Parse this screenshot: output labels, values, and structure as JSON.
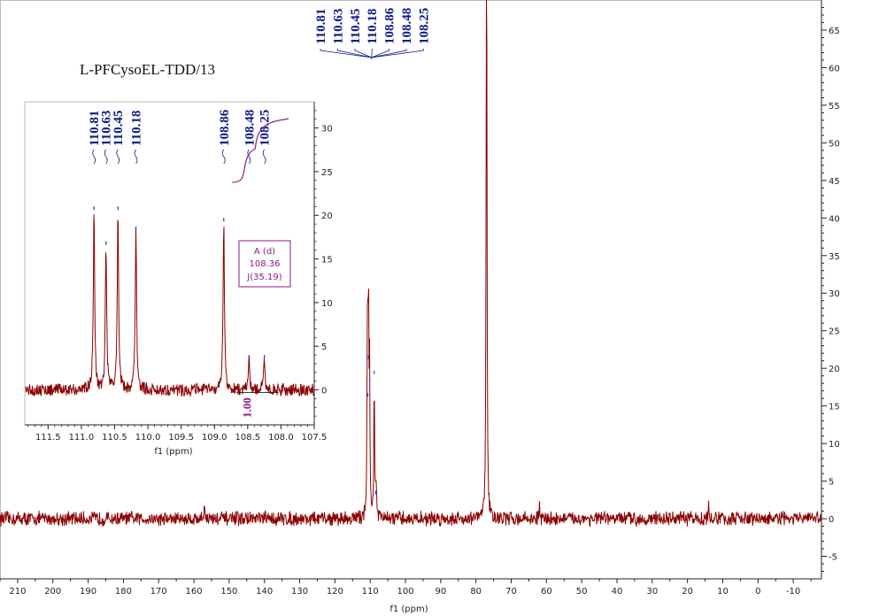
{
  "sample_title": "L-PFCysoEL-TDD/13",
  "chart_data": [
    {
      "type": "line",
      "title": "",
      "xlabel": "f1 (ppm)",
      "ylabel": "",
      "xlim": [
        215,
        -18
      ],
      "ylim": [
        -8,
        69
      ],
      "x_reversed": true,
      "grid": false,
      "x_ticks": [
        210,
        200,
        190,
        180,
        170,
        160,
        150,
        140,
        130,
        120,
        110,
        100,
        90,
        80,
        70,
        60,
        50,
        40,
        30,
        20,
        10,
        0,
        -10
      ],
      "y_ticks": [
        -5,
        0,
        5,
        10,
        15,
        20,
        25,
        30,
        35,
        40,
        45,
        50,
        55,
        60,
        65
      ],
      "y_axis_side": "right",
      "baseline": 0,
      "noise_amplitude": 0.8,
      "peaks": [
        {
          "ppm": 157.0,
          "height": 2.5
        },
        {
          "ppm": 110.81,
          "height": 21
        },
        {
          "ppm": 110.63,
          "height": 16
        },
        {
          "ppm": 110.45,
          "height": 21
        },
        {
          "ppm": 110.18,
          "height": 18
        },
        {
          "ppm": 108.86,
          "height": 19
        },
        {
          "ppm": 108.48,
          "height": 3
        },
        {
          "ppm": 108.25,
          "height": 3
        },
        {
          "ppm": 77.0,
          "height": 100
        },
        {
          "ppm": 62.0,
          "height": 1.8
        },
        {
          "ppm": 14.0,
          "height": 1.8
        }
      ],
      "peak_labels": [
        "110.81",
        "110.63",
        "110.45",
        "110.18",
        "108.86",
        "108.48",
        "108.25"
      ]
    },
    {
      "type": "line",
      "title": "",
      "xlabel": "f1 (ppm)",
      "ylabel": "",
      "xlim": [
        111.85,
        107.5
      ],
      "ylim": [
        -4,
        33
      ],
      "x_reversed": true,
      "grid": false,
      "x_ticks": [
        111.5,
        111.0,
        110.5,
        110.0,
        109.5,
        109.0,
        108.5,
        108.0,
        107.5
      ],
      "x_tick_labels": [
        "111.5",
        "111.0",
        "110.5",
        "110.0",
        "109.5",
        "109.0",
        "108.5",
        "108.0",
        "107.5"
      ],
      "y_ticks": [
        0,
        5,
        10,
        15,
        20,
        25,
        30
      ],
      "y_axis_side": "right",
      "baseline": 0,
      "noise_amplitude": 0.7,
      "peaks": [
        {
          "ppm": 110.81,
          "height": 20.5
        },
        {
          "ppm": 110.63,
          "height": 16.5
        },
        {
          "ppm": 110.45,
          "height": 20.5
        },
        {
          "ppm": 110.18,
          "height": 18.2
        },
        {
          "ppm": 108.86,
          "height": 19.2
        },
        {
          "ppm": 108.48,
          "height": 3.5
        },
        {
          "ppm": 108.25,
          "height": 3.5
        }
      ],
      "peak_labels": [
        "110.81",
        "110.63",
        "110.45",
        "110.18",
        "108.86",
        "108.48",
        "108.25"
      ],
      "multiplet": {
        "name": "A (d)",
        "shift": "108.36",
        "j": "J(35.19)"
      },
      "integral": {
        "value": "1.00",
        "from": 108.6,
        "to": 108.1
      }
    }
  ],
  "colors": {
    "spectrum": "#8b0000",
    "peak_tip": "#2a2ad0",
    "peak_label": "#0b1a8a",
    "multiplet": "#8b1a8b",
    "integral": "#8b1a8b",
    "axis": "#222222"
  }
}
